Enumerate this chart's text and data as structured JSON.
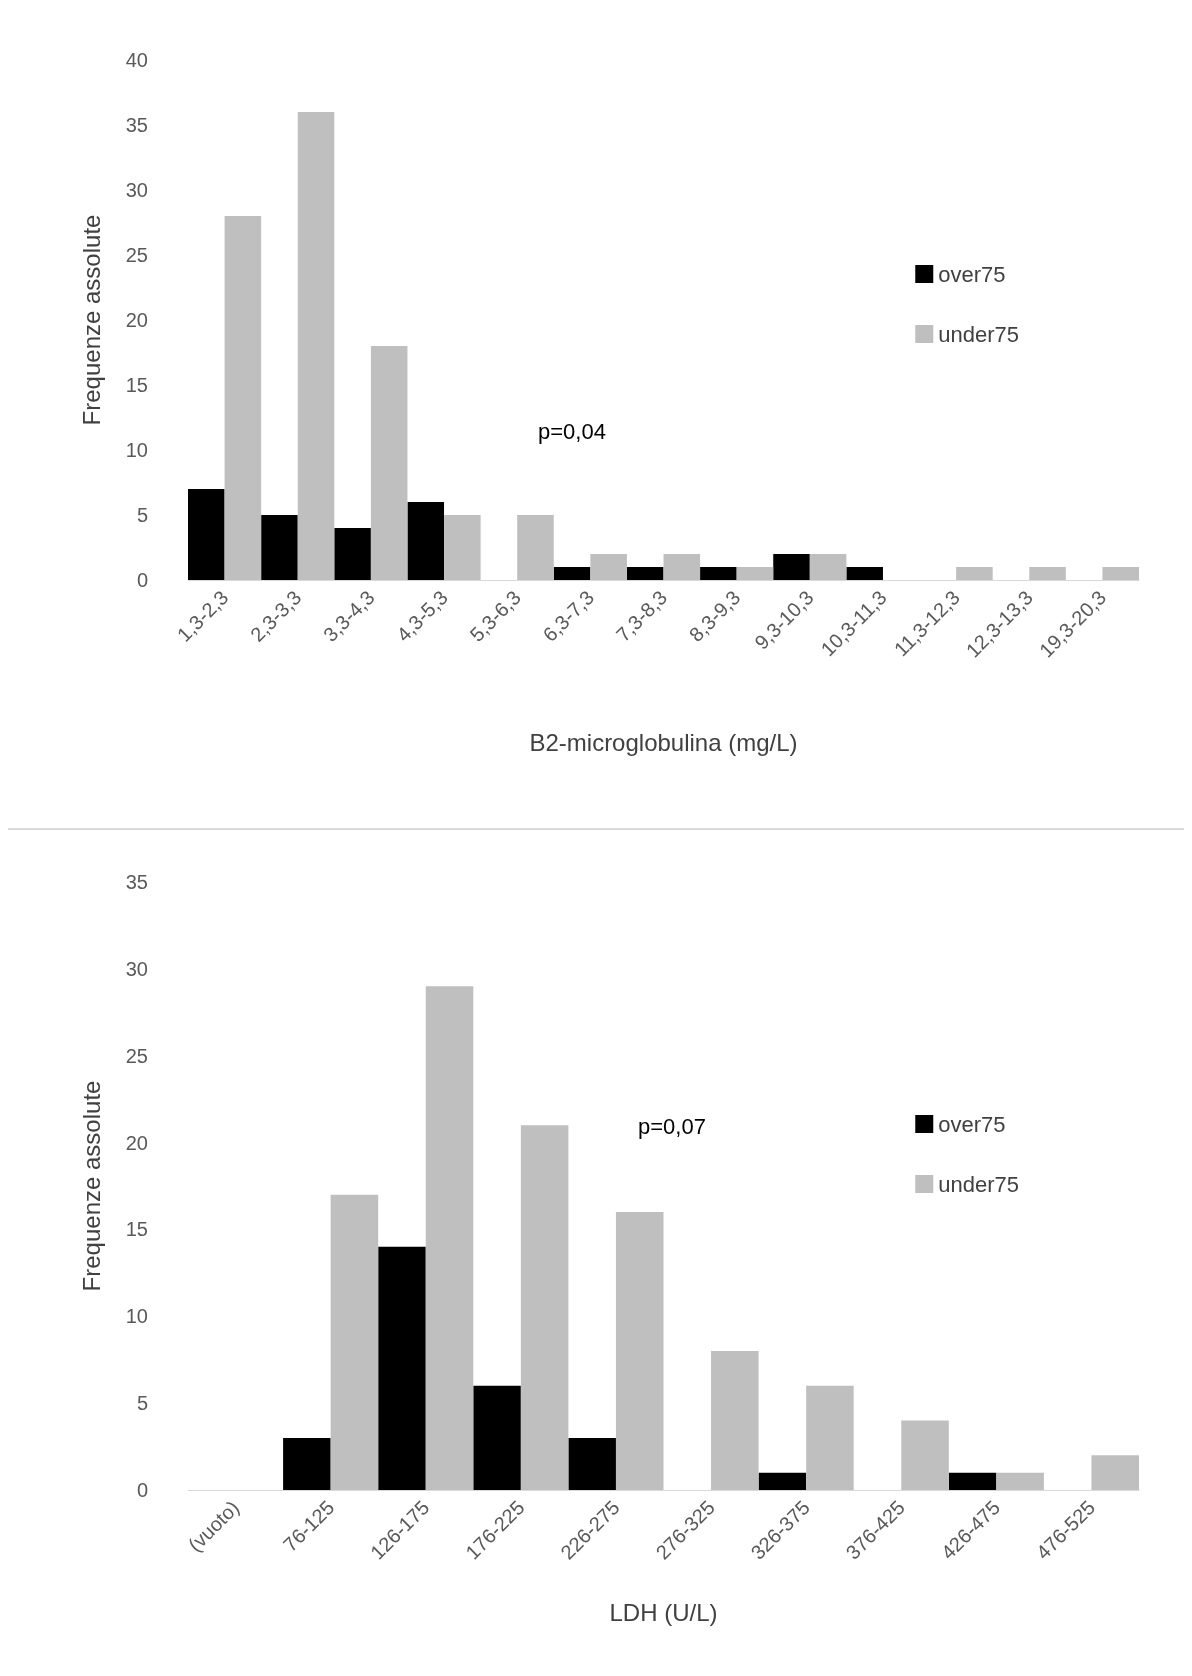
{
  "chart_data": [
    {
      "type": "bar",
      "xlabel": "B2-microglobulina (mg/L)",
      "ylabel": "Frequenze assolute",
      "categories": [
        "1,3-2,3",
        "2,3-3,3",
        "3,3-4,3",
        "4,3-5,3",
        "5,3-6,3",
        "6,3-7,3",
        "7,3-8,3",
        "8,3-9,3",
        "9,3-10,3",
        "10,3-11,3",
        "11,3-12,3",
        "12,3-13,3",
        "19,3-20,3"
      ],
      "series": [
        {
          "name": "over75",
          "color": "#000000",
          "values": [
            7,
            5,
            4,
            6,
            0,
            1,
            1,
            1,
            2,
            1,
            0,
            0,
            0
          ]
        },
        {
          "name": "under75",
          "color": "#bfbfbf",
          "values": [
            28,
            36,
            18,
            5,
            5,
            2,
            2,
            1,
            2,
            0,
            1,
            1,
            1
          ]
        }
      ],
      "ylim": [
        0,
        40
      ],
      "yticks": [
        0,
        5,
        10,
        15,
        20,
        25,
        30,
        35,
        40
      ],
      "grid": false,
      "legend": "right",
      "annotations": [
        "p=0,04"
      ]
    },
    {
      "type": "bar",
      "xlabel": "LDH (U/L)",
      "ylabel": "Frequenze assolute",
      "categories": [
        "(vuoto)",
        "76-125",
        "126-175",
        "176-225",
        "226-275",
        "276-325",
        "326-375",
        "376-425",
        "426-475",
        "476-525"
      ],
      "series": [
        {
          "name": "over75",
          "color": "#000000",
          "values": [
            0,
            3,
            14,
            6,
            3,
            0,
            1,
            0,
            1,
            0
          ]
        },
        {
          "name": "under75",
          "color": "#bfbfbf",
          "values": [
            0,
            17,
            29,
            21,
            16,
            8,
            6,
            4,
            1,
            2
          ]
        }
      ],
      "ylim": [
        0,
        35
      ],
      "yticks": [
        0,
        5,
        10,
        15,
        20,
        25,
        30,
        35
      ],
      "grid": false,
      "legend": "right",
      "annotations": [
        "p=0,07"
      ]
    }
  ]
}
